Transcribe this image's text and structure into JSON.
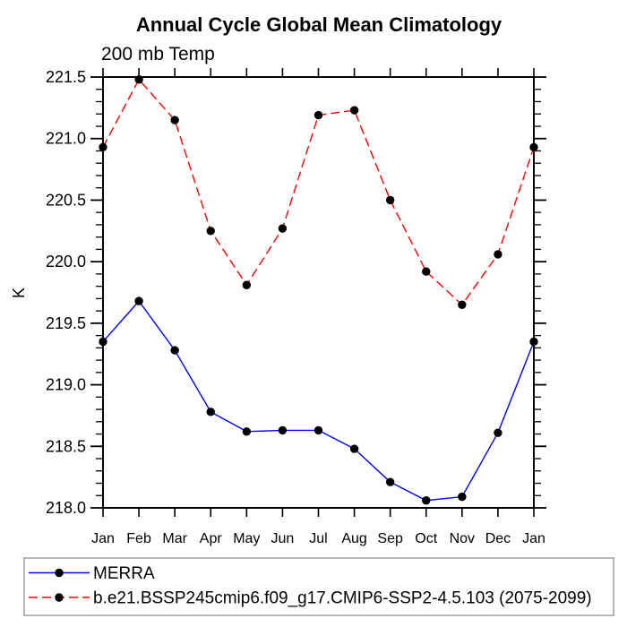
{
  "chart_data": {
    "type": "line",
    "title": "Annual Cycle Global Mean Climatology",
    "subtitle": "200 mb Temp",
    "ylabel": "K",
    "categories": [
      "Jan",
      "Feb",
      "Mar",
      "Apr",
      "May",
      "Jun",
      "Jul",
      "Aug",
      "Sep",
      "Oct",
      "Nov",
      "Dec",
      "Jan"
    ],
    "ylim": [
      218.0,
      221.5
    ],
    "y_major_step": 0.5,
    "y_minor_step": 0.1,
    "grid": false,
    "legend_position": "bottom-left",
    "axis_color": "#000000",
    "marker": {
      "shape": "circle",
      "color": "#000000"
    },
    "series": [
      {
        "id": "merra",
        "name": "MERRA",
        "color": "#0000ff",
        "line_style": "solid",
        "values": [
          219.35,
          219.68,
          219.28,
          218.78,
          218.62,
          218.63,
          218.63,
          218.48,
          218.21,
          218.06,
          218.09,
          218.61,
          219.35
        ]
      },
      {
        "id": "cmip6-ssp245",
        "name": "b.e21.BSSP245cmip6.f09_g17.CMIP6-SSP2-4.5.103 (2075-2099)",
        "color": "#ff0000",
        "line_style": "dashed",
        "values": [
          220.93,
          221.48,
          221.15,
          220.25,
          219.81,
          220.27,
          221.19,
          221.23,
          220.5,
          219.92,
          219.65,
          220.06,
          220.93
        ]
      }
    ]
  },
  "legend": {
    "border_color": "#9e9e9e",
    "background": "#ffffff"
  }
}
